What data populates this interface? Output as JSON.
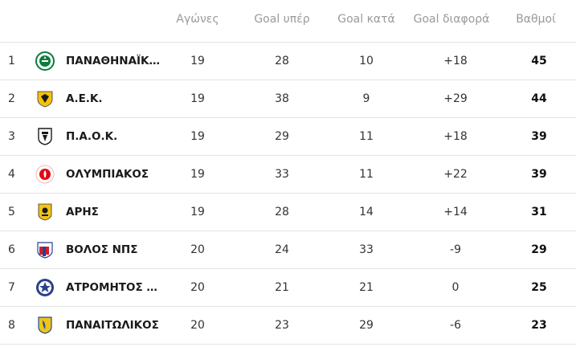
{
  "headers": {
    "played": "Αγώνες",
    "goals_for": "Goal υπέρ",
    "goals_against": "Goal κατά",
    "goal_diff": "Goal διαφορά",
    "points": "Βαθμοί"
  },
  "rows": [
    {
      "pos": "1",
      "team": "ΠΑΝΑΘΗΝΑΪΚΟΣ",
      "played": "19",
      "gf": "28",
      "ga": "10",
      "gd": "+18",
      "pts": "45",
      "crest": "panathinaikos-crest-icon",
      "c1": "#0a7d3b",
      "c2": "#ffffff"
    },
    {
      "pos": "2",
      "team": "Α.Ε.Κ.",
      "played": "19",
      "gf": "38",
      "ga": "9",
      "gd": "+29",
      "pts": "44",
      "crest": "aek-crest-icon",
      "c1": "#f4c20d",
      "c2": "#1a1a1a"
    },
    {
      "pos": "3",
      "team": "Π.Α.Ο.Κ.",
      "played": "19",
      "gf": "29",
      "ga": "11",
      "gd": "+18",
      "pts": "39",
      "crest": "paok-crest-icon",
      "c1": "#1a1a1a",
      "c2": "#ffffff"
    },
    {
      "pos": "4",
      "team": "ΟΛΥΜΠΙΑΚΟΣ",
      "played": "19",
      "gf": "33",
      "ga": "11",
      "gd": "+22",
      "pts": "39",
      "crest": "olympiakos-crest-icon",
      "c1": "#e30613",
      "c2": "#ffffff"
    },
    {
      "pos": "5",
      "team": "ΑΡΗΣ",
      "played": "19",
      "gf": "28",
      "ga": "14",
      "gd": "+14",
      "pts": "31",
      "crest": "aris-crest-icon",
      "c1": "#f2c318",
      "c2": "#1a1a1a"
    },
    {
      "pos": "6",
      "team": "ΒΟΛΟΣ ΝΠΣ",
      "played": "20",
      "gf": "24",
      "ga": "33",
      "gd": "-9",
      "pts": "29",
      "crest": "volos-crest-icon",
      "c1": "#d21f2b",
      "c2": "#2a3f96"
    },
    {
      "pos": "7",
      "team": "ΑΤΡΟΜΗΤΟΣ ΑΘΗΝΩΝ",
      "played": "20",
      "gf": "21",
      "ga": "21",
      "gd": "0",
      "pts": "25",
      "crest": "atromitos-crest-icon",
      "c1": "#2b3f8c",
      "c2": "#ffffff"
    },
    {
      "pos": "8",
      "team": "ΠΑΝΑΙΤΩΛΙΚΟΣ",
      "played": "20",
      "gf": "23",
      "ga": "29",
      "gd": "-6",
      "pts": "23",
      "crest": "panaitolikos-crest-icon",
      "c1": "#f2c318",
      "c2": "#1d4f9a"
    }
  ]
}
